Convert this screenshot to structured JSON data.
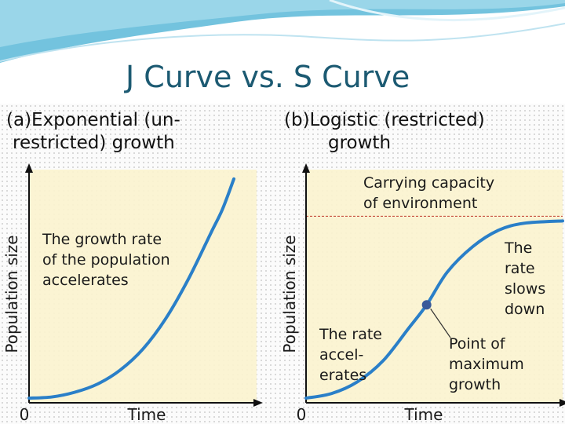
{
  "slide": {
    "title": "J Curve vs. S Curve"
  },
  "chart_data": [
    {
      "type": "line",
      "panel_title": "(a)Exponential (un-\nrestricted) growth",
      "xlabel": "Time",
      "ylabel": "Population size",
      "origin_label": "0",
      "xlim": [
        0,
        10
      ],
      "ylim": [
        0,
        10
      ],
      "grid": false,
      "x": [
        0,
        1,
        2,
        3,
        4,
        5,
        6,
        7,
        8,
        8.5,
        9
      ],
      "series": [
        {
          "values": [
            0.2,
            0.25,
            0.45,
            0.8,
            1.4,
            2.3,
            3.6,
            5.3,
            7.3,
            8.3,
            9.6
          ]
        }
      ],
      "annotations": [
        {
          "text": "The growth rate\nof the population\naccelerates"
        }
      ],
      "colors": {
        "curve": "#2a7fc8",
        "plot_bg": "#fbf3cf",
        "axis": "#111111"
      }
    },
    {
      "type": "line",
      "panel_title": "(b)Logistic (restricted)\ngrowth",
      "xlabel": "Time",
      "ylabel": "Population size",
      "origin_label": "0",
      "xlim": [
        0,
        10
      ],
      "ylim": [
        0,
        10
      ],
      "grid": false,
      "x": [
        0,
        1,
        2,
        3,
        4,
        4.7,
        5.5,
        6.5,
        7.5,
        8.5,
        10
      ],
      "series": [
        {
          "values": [
            0.2,
            0.4,
            0.9,
            1.8,
            3.2,
            4.2,
            5.6,
            6.7,
            7.4,
            7.7,
            7.8
          ]
        }
      ],
      "carrying_capacity": 8,
      "inflection_point": {
        "x": 4.7,
        "y": 4.2
      },
      "annotations": [
        {
          "text": "Carrying capacity\nof environment"
        },
        {
          "text": "The\nrate\nslows\ndown"
        },
        {
          "text": "The rate\naccel-\nerates"
        },
        {
          "text": "Point of\nmaximum\ngrowth"
        }
      ],
      "colors": {
        "curve": "#2a7fc8",
        "capacity_line": "#c0392b",
        "plot_bg": "#fbf3cf",
        "axis": "#111111",
        "point": "#3a5a9a"
      }
    }
  ]
}
